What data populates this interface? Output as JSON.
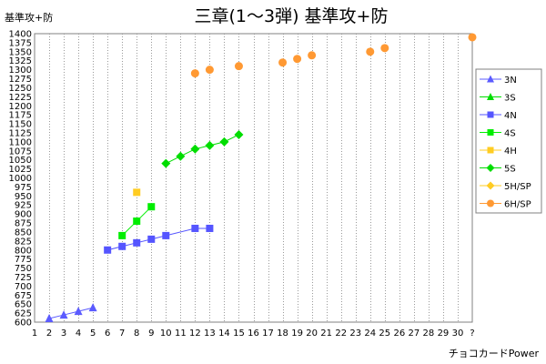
{
  "chart_data": {
    "type": "scatter",
    "title": "三章(1～3弾) 基準攻+防",
    "ylabel": "基準攻+防",
    "xlabel": "チョコカードPower",
    "xlim": [
      1,
      31
    ],
    "ylim": [
      600,
      1400
    ],
    "yticks": [
      600,
      625,
      650,
      675,
      700,
      725,
      750,
      775,
      800,
      825,
      850,
      875,
      900,
      925,
      950,
      975,
      1000,
      1025,
      1050,
      1075,
      1100,
      1125,
      1150,
      1175,
      1200,
      1225,
      1250,
      1275,
      1300,
      1325,
      1350,
      1375,
      1400
    ],
    "ytick_labels": [
      "600",
      "625",
      "650",
      "675",
      "700",
      "725",
      "750",
      "775",
      "800",
      "825",
      "850",
      "875",
      "900",
      "925",
      "950",
      "975",
      "1000",
      "1025",
      "1050",
      "1075",
      "1100",
      "1125",
      "1150",
      "1175",
      "1200",
      "1225",
      "1250",
      "1275",
      "1300",
      "1325",
      "1350",
      "1375",
      "1400"
    ],
    "xticks": [
      1,
      2,
      3,
      4,
      5,
      6,
      7,
      8,
      9,
      10,
      11,
      12,
      13,
      14,
      15,
      16,
      17,
      18,
      19,
      20,
      21,
      22,
      23,
      24,
      25,
      26,
      27,
      28,
      29,
      30,
      31
    ],
    "xtick_labels": [
      "1",
      "2",
      "3",
      "4",
      "5",
      "6",
      "7",
      "8",
      "9",
      "10",
      "11",
      "12",
      "13",
      "14",
      "15",
      "16",
      "17",
      "18",
      "19",
      "20",
      "21",
      "22",
      "23",
      "24",
      "25",
      "26",
      "27",
      "28",
      "29",
      "30",
      "?"
    ],
    "grid": "vertical",
    "legend_position": "right",
    "series": [
      {
        "name": "3N",
        "color": "#5b5bff",
        "marker": "triangle",
        "connect": true,
        "points": [
          [
            2,
            610
          ],
          [
            3,
            620
          ],
          [
            4,
            630
          ],
          [
            5,
            640
          ]
        ]
      },
      {
        "name": "3S",
        "color": "#00dd00",
        "marker": "triangle",
        "connect": true,
        "points": []
      },
      {
        "name": "4N",
        "color": "#5555ff",
        "marker": "square",
        "connect": true,
        "points": [
          [
            6,
            800
          ],
          [
            7,
            810
          ],
          [
            8,
            820
          ],
          [
            9,
            830
          ],
          [
            10,
            840
          ],
          [
            12,
            860
          ],
          [
            13,
            860
          ]
        ]
      },
      {
        "name": "4S",
        "color": "#00ee00",
        "marker": "square",
        "connect": true,
        "points": [
          [
            7,
            840
          ],
          [
            8,
            880
          ],
          [
            9,
            920
          ]
        ]
      },
      {
        "name": "4H",
        "color": "#ffcc22",
        "marker": "square",
        "connect": false,
        "points": [
          [
            8,
            960
          ]
        ]
      },
      {
        "name": "5S",
        "color": "#00dd00",
        "marker": "diamond",
        "connect": true,
        "points": [
          [
            10,
            1040
          ],
          [
            11,
            1060
          ],
          [
            12,
            1080
          ],
          [
            13,
            1090
          ],
          [
            14,
            1100
          ],
          [
            15,
            1120
          ]
        ]
      },
      {
        "name": "5H/SP",
        "color": "#ffcc22",
        "marker": "diamond",
        "connect": false,
        "points": []
      },
      {
        "name": "6H/SP",
        "color": "#ff9933",
        "marker": "circle",
        "connect": false,
        "points": [
          [
            12,
            1290
          ],
          [
            13,
            1300
          ],
          [
            15,
            1310
          ],
          [
            18,
            1320
          ],
          [
            19,
            1330
          ],
          [
            20,
            1340
          ],
          [
            24,
            1350
          ],
          [
            25,
            1360
          ],
          [
            31,
            1390
          ]
        ]
      }
    ]
  }
}
